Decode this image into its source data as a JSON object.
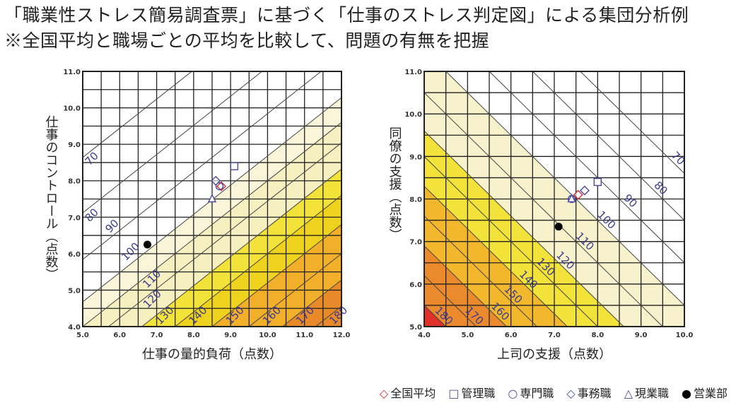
{
  "title_line1": "「職業性ストレス簡易調査票」に基づく「仕事のストレス判定図」による集団分析例",
  "title_line2": "※全国平均と職場ごとの平均を比較して、問題の有無を把握",
  "legend": [
    {
      "label": "全国平均",
      "marker": "diamond",
      "color": "#d03030"
    },
    {
      "label": "管理職",
      "marker": "square",
      "color": "#4a4aa0"
    },
    {
      "label": "専門職",
      "marker": "circle",
      "color": "#4a4aa0"
    },
    {
      "label": "事務職",
      "marker": "diamond",
      "color": "#4a4aa0"
    },
    {
      "label": "現業職",
      "marker": "triangle",
      "color": "#4a4aa0"
    },
    {
      "label": "営業部",
      "marker": "filled-circle",
      "color": "#000000"
    }
  ],
  "chart_data": [
    {
      "type": "scatter",
      "xlabel": "仕事の量的負荷（点数）",
      "ylabel": "仕事のコントロール（点数）",
      "xlim": [
        5,
        12
      ],
      "ylim": [
        4,
        11
      ],
      "xticks": [
        "5.0",
        "6.0",
        "7.0",
        "8.0",
        "9.0",
        "10.0",
        "11.0",
        "12.0"
      ],
      "yticks": [
        "4.0",
        "5.0",
        "6.0",
        "7.0",
        "8.0",
        "9.0",
        "10.0",
        "11.0"
      ],
      "grid": true,
      "grid_step": 0.5,
      "contour_direction": "rising",
      "contours": [
        {
          "value": "70",
          "x_at_y4": -0.8
        },
        {
          "value": "80",
          "x_at_y4": 1.1
        },
        {
          "value": "90",
          "x_at_y4": 2.7
        },
        {
          "value": "100",
          "x_at_y4": 4.15
        },
        {
          "value": "110",
          "x_at_y4": 5.0
        },
        {
          "value": "120",
          "x_at_y4": 5.7
        },
        {
          "value": "130",
          "x_at_y4": 6.6
        },
        {
          "value": "140",
          "x_at_y4": 7.5
        },
        {
          "value": "150",
          "x_at_y4": 8.5
        },
        {
          "value": "160",
          "x_at_y4": 9.5
        },
        {
          "value": "170",
          "x_at_y4": 10.4
        },
        {
          "value": "180",
          "x_at_y4": 11.3
        }
      ],
      "bands": [
        {
          "from": "100",
          "color": "#faf5d8"
        },
        {
          "from": "110",
          "color": "#f6efc0"
        },
        {
          "from": "130",
          "color": "#f2e23a"
        },
        {
          "from": "140",
          "color": "#efd21e"
        },
        {
          "from": "150",
          "color": "#f2b02a"
        },
        {
          "from": "170",
          "color": "#e88a2a"
        }
      ],
      "points": [
        {
          "label": "全国平均",
          "x": 8.75,
          "y": 7.85
        },
        {
          "label": "管理職",
          "x": 9.1,
          "y": 8.4
        },
        {
          "label": "専門職",
          "x": 8.7,
          "y": 7.85
        },
        {
          "label": "事務職",
          "x": 8.6,
          "y": 8.0
        },
        {
          "label": "現業職",
          "x": 8.5,
          "y": 7.5
        },
        {
          "label": "営業部",
          "x": 6.75,
          "y": 6.25
        }
      ]
    },
    {
      "type": "scatter",
      "xlabel": "上司の支援（点数）",
      "ylabel": "同僚の支援（点数）",
      "xlim": [
        4,
        10
      ],
      "ylim": [
        5,
        11
      ],
      "xticks": [
        "4.0",
        "5.0",
        "6.0",
        "7.0",
        "8.0",
        "9.0",
        "10.0"
      ],
      "yticks": [
        "5.0",
        "6.0",
        "7.0",
        "8.0",
        "9.0",
        "10.0",
        "11.0"
      ],
      "grid": true,
      "grid_step": 0.5,
      "contour_direction": "falling",
      "contours": [
        {
          "value": "70",
          "x_plus_y": 18.6
        },
        {
          "value": "80",
          "x_plus_y": 17.5
        },
        {
          "value": "90",
          "x_plus_y": 16.5
        },
        {
          "value": "100",
          "x_plus_y": 15.5
        },
        {
          "value": "110",
          "x_plus_y": 14.5
        },
        {
          "value": "120",
          "x_plus_y": 13.6
        },
        {
          "value": "130",
          "x_plus_y": 13.0
        },
        {
          "value": "140",
          "x_plus_y": 12.3
        },
        {
          "value": "150",
          "x_plus_y": 11.6
        },
        {
          "value": "160",
          "x_plus_y": 10.9
        },
        {
          "value": "170",
          "x_plus_y": 10.2
        },
        {
          "value": "180",
          "x_plus_y": 9.5
        }
      ],
      "bands": [
        {
          "from": "100",
          "color": "#f8f2cc"
        },
        {
          "from": "120",
          "color": "#f2e23a"
        },
        {
          "from": "140",
          "color": "#f3b72e"
        },
        {
          "from": "160",
          "color": "#ea8a2c"
        },
        {
          "from": "180",
          "color": "#e0302a"
        }
      ],
      "points": [
        {
          "label": "全国平均",
          "x": 7.55,
          "y": 8.1
        },
        {
          "label": "管理職",
          "x": 8.0,
          "y": 8.4
        },
        {
          "label": "専門職",
          "x": 7.4,
          "y": 8.0
        },
        {
          "label": "事務職",
          "x": 7.7,
          "y": 8.2
        },
        {
          "label": "現業職",
          "x": 7.4,
          "y": 8.0
        },
        {
          "label": "営業部",
          "x": 7.1,
          "y": 7.35
        }
      ]
    }
  ]
}
